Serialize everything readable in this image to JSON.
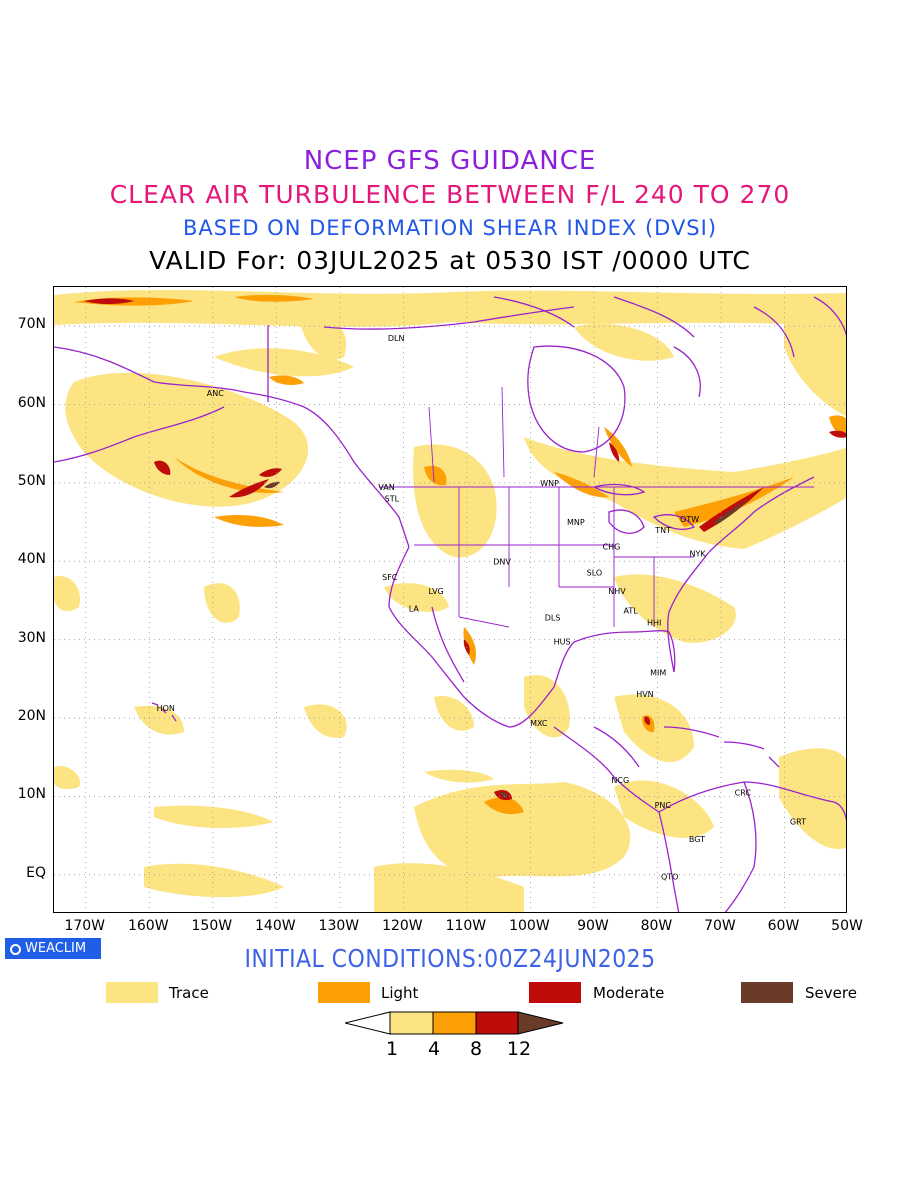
{
  "titles": {
    "line1": "NCEP GFS GUIDANCE",
    "line2": "CLEAR AIR TURBULENCE BETWEEN F/L 240 TO 270",
    "line3": "BASED ON DEFORMATION SHEAR INDEX (DVSI)",
    "line4": "VALID For: 03JUL2025 at 0530 IST /0000 UTC"
  },
  "colors": {
    "line1": "#8a1fdc",
    "line2": "#e6177b",
    "line3": "#2156e8",
    "init": "#3f63e6",
    "coast": "#9a22cc",
    "trace": "#fde483",
    "light": "#fda005",
    "moderate": "#c00b0b",
    "severe": "#6b3b2a"
  },
  "map": {
    "lat_labels": [
      "70N",
      "60N",
      "50N",
      "40N",
      "30N",
      "20N",
      "10N",
      "EQ"
    ],
    "lon_labels": [
      "170W",
      "160W",
      "150W",
      "140W",
      "130W",
      "120W",
      "110W",
      "100W",
      "90W",
      "80W",
      "70W",
      "60W",
      "50W"
    ],
    "stations": [
      {
        "name": "DLN",
        "lon": -121.5,
        "lat": 68.5
      },
      {
        "name": "ANC",
        "lon": -150.0,
        "lat": 61.5
      },
      {
        "name": "VAN",
        "lon": -123.0,
        "lat": 49.5
      },
      {
        "name": "STL",
        "lon": -122.0,
        "lat": 48.0
      },
      {
        "name": "WNP",
        "lon": -97.5,
        "lat": 50.0
      },
      {
        "name": "MNP",
        "lon": -93.3,
        "lat": 45.0
      },
      {
        "name": "TNT",
        "lon": -79.4,
        "lat": 44.0
      },
      {
        "name": "OTW",
        "lon": -75.5,
        "lat": 45.4
      },
      {
        "name": "CHG",
        "lon": -87.7,
        "lat": 41.9
      },
      {
        "name": "NYK",
        "lon": -74.0,
        "lat": 41.0
      },
      {
        "name": "DNV",
        "lon": -104.9,
        "lat": 40.0
      },
      {
        "name": "SFC",
        "lon": -122.4,
        "lat": 38.0
      },
      {
        "name": "SLO",
        "lon": -90.2,
        "lat": 38.6
      },
      {
        "name": "LVG",
        "lon": -115.1,
        "lat": 36.2
      },
      {
        "name": "NHV",
        "lon": -86.8,
        "lat": 36.2
      },
      {
        "name": "LA",
        "lon": -118.2,
        "lat": 34.0
      },
      {
        "name": "ATL",
        "lon": -84.4,
        "lat": 33.7
      },
      {
        "name": "DLS",
        "lon": -96.8,
        "lat": 32.8
      },
      {
        "name": "HHI",
        "lon": -80.7,
        "lat": 32.2
      },
      {
        "name": "HUS",
        "lon": -95.4,
        "lat": 29.8
      },
      {
        "name": "MIM",
        "lon": -80.2,
        "lat": 25.8
      },
      {
        "name": "HVN",
        "lon": -82.4,
        "lat": 23.1
      },
      {
        "name": "HON",
        "lon": -157.9,
        "lat": 21.3
      },
      {
        "name": "MXC",
        "lon": -99.1,
        "lat": 19.4
      },
      {
        "name": "NCG",
        "lon": -86.3,
        "lat": 12.1
      },
      {
        "name": "PNC",
        "lon": -79.5,
        "lat": 8.9
      },
      {
        "name": "CRC",
        "lon": -66.9,
        "lat": 10.5
      },
      {
        "name": "GRT",
        "lon": -58.2,
        "lat": 6.8
      },
      {
        "name": "BGT",
        "lon": -74.1,
        "lat": 4.6
      },
      {
        "name": "QTO",
        "lon": -78.5,
        "lat": -0.2
      }
    ]
  },
  "brand": "WEACLIM",
  "initial_conditions": "INITIAL CONDITIONS:00Z24JUN2025",
  "legend": [
    {
      "label": "Trace",
      "color": "#fde483"
    },
    {
      "label": "Light",
      "color": "#fda005"
    },
    {
      "label": "Moderate",
      "color": "#c00b0b"
    },
    {
      "label": "Severe",
      "color": "#6b3b2a"
    }
  ],
  "colorbar": {
    "ticks": [
      "1",
      "4",
      "8",
      "12"
    ]
  }
}
